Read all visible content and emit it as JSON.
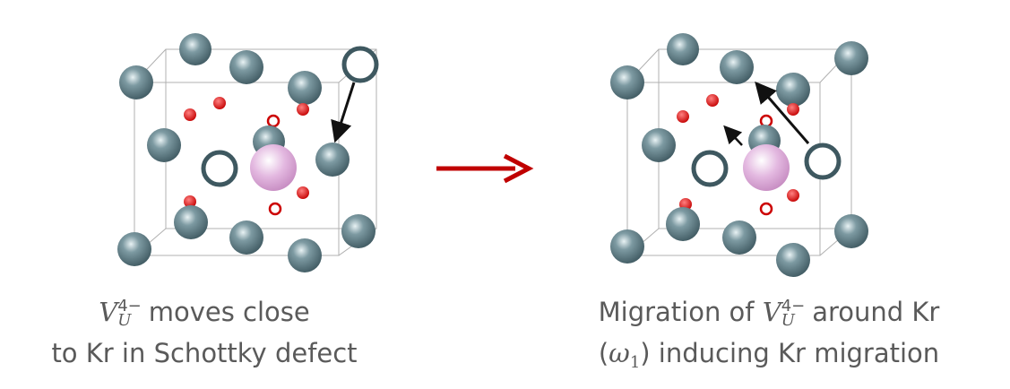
{
  "panels": [
    {
      "caption": {
        "line1": {
          "symbol": "V",
          "sub": "U",
          "sup": "4−",
          "text": "moves close"
        },
        "line2": "to Kr in Schottky defect"
      }
    },
    {
      "caption": {
        "line1": {
          "pre": "Migration of",
          "symbol": "V",
          "sub": "U",
          "sup": "4−",
          "text": "around Kr"
        },
        "line2": {
          "open": "(",
          "symbol": "ω",
          "sub": "1",
          "text": ") inducing Kr migration"
        }
      }
    }
  ]
}
